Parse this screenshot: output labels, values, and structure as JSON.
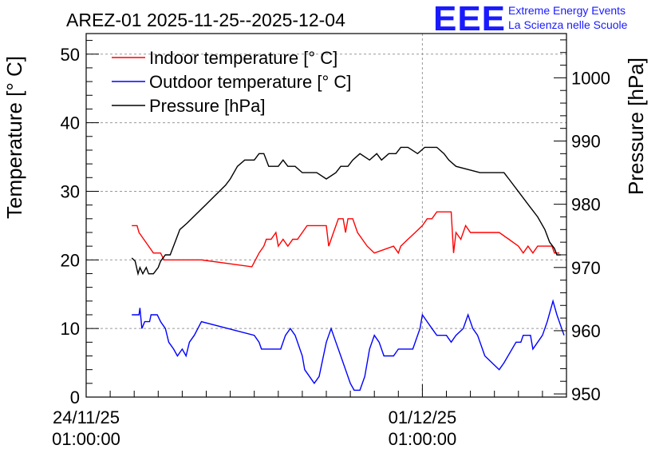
{
  "chart_data": {
    "type": "line",
    "title": "AREZ-01 2025-11-25--2025-12-04",
    "ylabel": "Temperature [° C]",
    "y2label": "Pressure [hPa]",
    "ylim": [
      0,
      53
    ],
    "y2lim": [
      949.5,
      1007
    ],
    "yticks": [
      "0",
      "10",
      "20",
      "30",
      "40",
      "50"
    ],
    "y2ticks": [
      "950",
      "960",
      "970",
      "980",
      "990",
      "1000"
    ],
    "xlim": [
      0,
      10
    ],
    "xticks": [
      {
        "value": 0,
        "line1": "24/11/25",
        "line2": "01:00:00"
      },
      {
        "value": 7,
        "line1": "01/12/25",
        "line2": "01:00:00"
      }
    ],
    "grid": true,
    "legend_position": "top-left",
    "series": [
      {
        "name": "Indoor temperature [° C]",
        "axis": "left",
        "color": "#ff0000",
        "points": [
          [
            0.95,
            25
          ],
          [
            1.06,
            25
          ],
          [
            1.1,
            24
          ],
          [
            1.2,
            23
          ],
          [
            1.3,
            22
          ],
          [
            1.4,
            21
          ],
          [
            1.55,
            21
          ],
          [
            1.62,
            20
          ],
          [
            1.75,
            20
          ],
          [
            2.4,
            20
          ],
          [
            3.45,
            19
          ],
          [
            3.6,
            21
          ],
          [
            3.7,
            22
          ],
          [
            3.75,
            23
          ],
          [
            3.85,
            23
          ],
          [
            3.95,
            24
          ],
          [
            4.0,
            22
          ],
          [
            4.1,
            23
          ],
          [
            4.2,
            22
          ],
          [
            4.3,
            23
          ],
          [
            4.4,
            23
          ],
          [
            4.5,
            24
          ],
          [
            4.6,
            25
          ],
          [
            5.0,
            25
          ],
          [
            5.05,
            22
          ],
          [
            5.15,
            24
          ],
          [
            5.25,
            26
          ],
          [
            5.35,
            26
          ],
          [
            5.4,
            24
          ],
          [
            5.45,
            26
          ],
          [
            5.55,
            26
          ],
          [
            5.65,
            24
          ],
          [
            5.75,
            23
          ],
          [
            5.85,
            22
          ],
          [
            6.0,
            21
          ],
          [
            6.4,
            22
          ],
          [
            6.5,
            21
          ],
          [
            6.55,
            22
          ],
          [
            6.7,
            23
          ],
          [
            6.85,
            24
          ],
          [
            7.0,
            25
          ],
          [
            7.1,
            26
          ],
          [
            7.2,
            26
          ],
          [
            7.3,
            27
          ],
          [
            7.6,
            27
          ],
          [
            7.65,
            21
          ],
          [
            7.7,
            24
          ],
          [
            7.8,
            23
          ],
          [
            7.9,
            25
          ],
          [
            8.0,
            24
          ],
          [
            8.6,
            24
          ],
          [
            8.8,
            23
          ],
          [
            9.0,
            22
          ],
          [
            9.1,
            21
          ],
          [
            9.2,
            22
          ],
          [
            9.3,
            21
          ],
          [
            9.4,
            22
          ],
          [
            9.6,
            22
          ],
          [
            9.7,
            22
          ],
          [
            9.75,
            21
          ],
          [
            9.85,
            21
          ]
        ]
      },
      {
        "name": "Outdoor temperature [° C]",
        "axis": "left",
        "color": "#0000ff",
        "points": [
          [
            0.95,
            12
          ],
          [
            1.1,
            12
          ],
          [
            1.12,
            13
          ],
          [
            1.16,
            10
          ],
          [
            1.22,
            11
          ],
          [
            1.32,
            11
          ],
          [
            1.35,
            12
          ],
          [
            1.48,
            12
          ],
          [
            1.55,
            11
          ],
          [
            1.65,
            10
          ],
          [
            1.72,
            8
          ],
          [
            1.82,
            7
          ],
          [
            1.9,
            6
          ],
          [
            2.0,
            7
          ],
          [
            2.08,
            6
          ],
          [
            2.15,
            8
          ],
          [
            2.25,
            9
          ],
          [
            2.4,
            11
          ],
          [
            3.5,
            9
          ],
          [
            3.6,
            8
          ],
          [
            3.65,
            7
          ],
          [
            4.05,
            7
          ],
          [
            4.15,
            9
          ],
          [
            4.25,
            10
          ],
          [
            4.35,
            9
          ],
          [
            4.5,
            6
          ],
          [
            4.55,
            4
          ],
          [
            4.65,
            3
          ],
          [
            4.75,
            2
          ],
          [
            4.85,
            3
          ],
          [
            5.0,
            8
          ],
          [
            5.1,
            10
          ],
          [
            5.2,
            8
          ],
          [
            5.3,
            6
          ],
          [
            5.4,
            4
          ],
          [
            5.5,
            2
          ],
          [
            5.58,
            1
          ],
          [
            5.7,
            1
          ],
          [
            5.8,
            3
          ],
          [
            5.9,
            7
          ],
          [
            6.0,
            9
          ],
          [
            6.1,
            8
          ],
          [
            6.2,
            6
          ],
          [
            6.4,
            6
          ],
          [
            6.5,
            7
          ],
          [
            6.8,
            7
          ],
          [
            6.95,
            10
          ],
          [
            7.0,
            12
          ],
          [
            7.1,
            11
          ],
          [
            7.2,
            10
          ],
          [
            7.3,
            9
          ],
          [
            7.5,
            9
          ],
          [
            7.6,
            8
          ],
          [
            7.7,
            9
          ],
          [
            7.85,
            10
          ],
          [
            7.95,
            12
          ],
          [
            8.05,
            10
          ],
          [
            8.15,
            9
          ],
          [
            8.3,
            6
          ],
          [
            8.45,
            5
          ],
          [
            8.6,
            4
          ],
          [
            8.7,
            5
          ],
          [
            8.95,
            8
          ],
          [
            9.05,
            8
          ],
          [
            9.1,
            9
          ],
          [
            9.25,
            9
          ],
          [
            9.3,
            7
          ],
          [
            9.4,
            8
          ],
          [
            9.5,
            9
          ],
          [
            9.6,
            11
          ],
          [
            9.72,
            14
          ],
          [
            9.8,
            12
          ],
          [
            9.9,
            10
          ],
          [
            9.95,
            9
          ]
        ]
      },
      {
        "name": "Pressure [hPa]",
        "axis": "right",
        "color": "#000000",
        "points": [
          [
            0.95,
            971.5
          ],
          [
            1.02,
            971
          ],
          [
            1.05,
            970
          ],
          [
            1.08,
            969
          ],
          [
            1.12,
            970
          ],
          [
            1.18,
            969
          ],
          [
            1.25,
            970
          ],
          [
            1.3,
            969
          ],
          [
            1.35,
            969
          ],
          [
            1.4,
            969
          ],
          [
            1.5,
            970
          ],
          [
            1.55,
            971
          ],
          [
            1.65,
            972
          ],
          [
            1.75,
            972
          ],
          [
            1.85,
            974
          ],
          [
            1.95,
            976
          ],
          [
            2.1,
            977
          ],
          [
            2.5,
            980
          ],
          [
            2.9,
            983
          ],
          [
            3.0,
            984
          ],
          [
            3.15,
            986
          ],
          [
            3.3,
            987
          ],
          [
            3.5,
            987
          ],
          [
            3.6,
            988
          ],
          [
            3.7,
            988
          ],
          [
            3.75,
            987
          ],
          [
            3.8,
            986
          ],
          [
            4.0,
            986
          ],
          [
            4.1,
            987
          ],
          [
            4.2,
            986
          ],
          [
            4.35,
            986
          ],
          [
            4.5,
            985
          ],
          [
            4.8,
            985
          ],
          [
            5.0,
            984
          ],
          [
            5.2,
            985
          ],
          [
            5.3,
            986
          ],
          [
            5.45,
            986
          ],
          [
            5.55,
            987
          ],
          [
            5.7,
            988
          ],
          [
            5.9,
            987
          ],
          [
            6.05,
            988
          ],
          [
            6.15,
            987
          ],
          [
            6.3,
            988
          ],
          [
            6.45,
            988
          ],
          [
            6.55,
            989
          ],
          [
            6.7,
            989
          ],
          [
            6.9,
            988
          ],
          [
            7.05,
            989
          ],
          [
            7.3,
            989
          ],
          [
            7.45,
            988
          ],
          [
            7.55,
            987
          ],
          [
            7.7,
            986
          ],
          [
            8.2,
            985
          ],
          [
            8.7,
            985
          ],
          [
            8.8,
            984
          ],
          [
            9.0,
            982
          ],
          [
            9.2,
            980
          ],
          [
            9.4,
            978
          ],
          [
            9.55,
            976
          ],
          [
            9.65,
            974
          ],
          [
            9.75,
            973
          ],
          [
            9.8,
            972
          ],
          [
            9.88,
            972
          ]
        ]
      }
    ]
  },
  "logo": {
    "mark": "EEE",
    "line1": "Extreme Energy Events",
    "line2": "La Scienza nelle Scuole",
    "color": "#1a1aff"
  }
}
